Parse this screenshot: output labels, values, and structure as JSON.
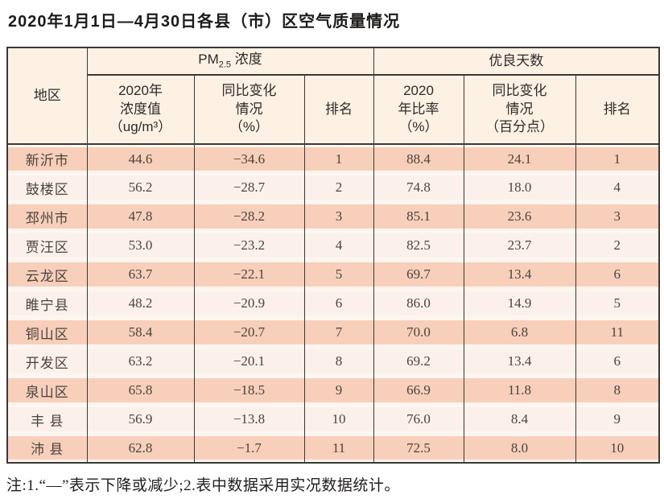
{
  "page": {
    "title": "2020年1月1日—4月30日各县（市）区空气质量情况",
    "note": "注:1.“—”表示下降或减少;2.表中数据采用实况数据统计。"
  },
  "colors": {
    "band-salmon": "#f8cfba",
    "row-light": "#fcf1ea",
    "header-bg": "#fdf1e4",
    "border-dark": "#3b3836"
  },
  "table": {
    "header": {
      "region": "地区",
      "pm25_group": {
        "prefix": "PM",
        "sub": "2.5",
        "suffix": " 浓度"
      },
      "good_days_group": "优良天数",
      "col_pm_value": "2020年\n浓度值\n（ug/m³）",
      "col_pm_change": "同比变化\n情况\n（%）",
      "col_pm_rank": "排名",
      "col_gd_ratio": "2020\n年比率\n（%）",
      "col_gd_change": "同比变化\n情况\n（百分点）",
      "col_gd_rank": "排名"
    },
    "rows": [
      {
        "region": "新沂市",
        "pm_value": "44.6",
        "pm_change": "−34.6",
        "pm_rank": "1",
        "gd_ratio": "88.4",
        "gd_change": "24.1",
        "gd_rank": "1"
      },
      {
        "region": "鼓楼区",
        "pm_value": "56.2",
        "pm_change": "−28.7",
        "pm_rank": "2",
        "gd_ratio": "74.8",
        "gd_change": "18.0",
        "gd_rank": "4"
      },
      {
        "region": "邳州市",
        "pm_value": "47.8",
        "pm_change": "−28.2",
        "pm_rank": "3",
        "gd_ratio": "85.1",
        "gd_change": "23.6",
        "gd_rank": "3"
      },
      {
        "region": "贾汪区",
        "pm_value": "53.0",
        "pm_change": "−23.2",
        "pm_rank": "4",
        "gd_ratio": "82.5",
        "gd_change": "23.7",
        "gd_rank": "2"
      },
      {
        "region": "云龙区",
        "pm_value": "63.7",
        "pm_change": "−22.1",
        "pm_rank": "5",
        "gd_ratio": "69.7",
        "gd_change": "13.4",
        "gd_rank": "6"
      },
      {
        "region": "睢宁县",
        "pm_value": "48.2",
        "pm_change": "−20.9",
        "pm_rank": "6",
        "gd_ratio": "86.0",
        "gd_change": "14.9",
        "gd_rank": "5"
      },
      {
        "region": "铜山区",
        "pm_value": "58.4",
        "pm_change": "−20.7",
        "pm_rank": "7",
        "gd_ratio": "70.0",
        "gd_change": "6.8",
        "gd_rank": "11"
      },
      {
        "region": "开发区",
        "pm_value": "63.2",
        "pm_change": "−20.1",
        "pm_rank": "8",
        "gd_ratio": "69.2",
        "gd_change": "13.4",
        "gd_rank": "6"
      },
      {
        "region": "泉山区",
        "pm_value": "65.8",
        "pm_change": "−18.5",
        "pm_rank": "9",
        "gd_ratio": "66.9",
        "gd_change": "11.8",
        "gd_rank": "8"
      },
      {
        "region": "丰 县",
        "pm_value": "56.9",
        "pm_change": "−13.8",
        "pm_rank": "10",
        "gd_ratio": "76.0",
        "gd_change": "8.4",
        "gd_rank": "9"
      },
      {
        "region": "沛 县",
        "pm_value": "62.8",
        "pm_change": "−1.7",
        "pm_rank": "11",
        "gd_ratio": "72.5",
        "gd_change": "8.0",
        "gd_rank": "10"
      }
    ]
  }
}
